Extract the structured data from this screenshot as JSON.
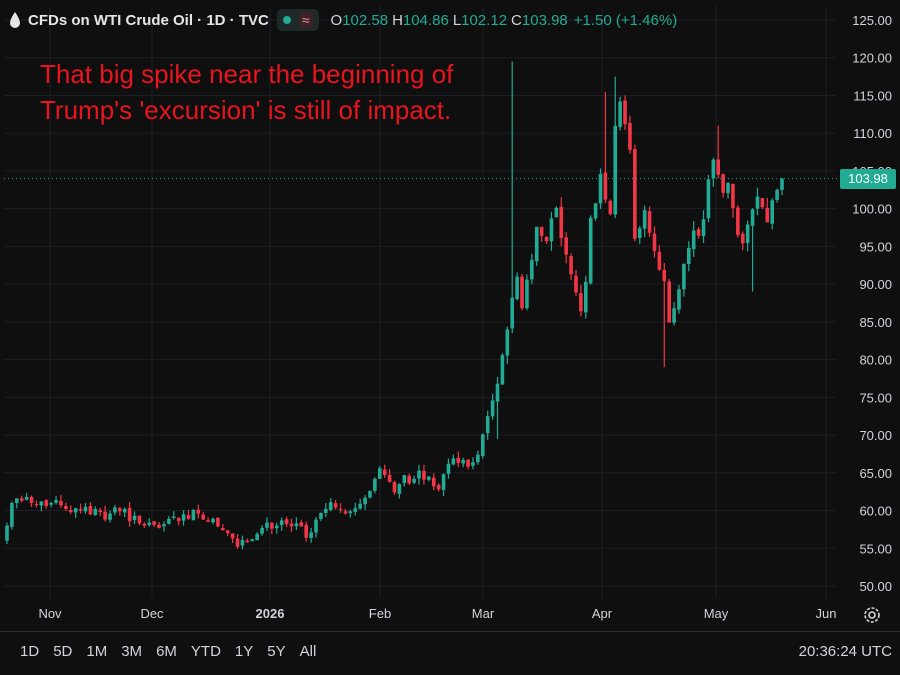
{
  "header": {
    "title": "CFDs on WTI Crude Oil · 1D · TVC",
    "wave_icon": "≈",
    "ohlc": [
      {
        "k": "O",
        "v": "102.58"
      },
      {
        "k": "H",
        "v": "104.86"
      },
      {
        "k": "L",
        "v": "102.12"
      },
      {
        "k": "C",
        "v": "103.98"
      }
    ],
    "change": "+1.50 (+1.46%)"
  },
  "annotation": "That big spike near the beginning of Trump's 'excursion' is still of impact.",
  "last_price_label": "103.98",
  "timeframes": [
    "1D",
    "5D",
    "1M",
    "3M",
    "6M",
    "YTD",
    "1Y",
    "5Y",
    "All"
  ],
  "clock": "20:36:24 UTC",
  "colors": {
    "up": "#22ab94",
    "down": "#f23645",
    "grid": "#1c1f26",
    "text": "#d1d4dc",
    "annotation": "#e8141e"
  },
  "chart_data": {
    "type": "candlestick",
    "ylim": [
      48,
      127
    ],
    "y_ticks": [
      "125.00",
      "120.00",
      "115.00",
      "110.00",
      "105.00",
      "100.00",
      "95.00",
      "90.00",
      "85.00",
      "80.00",
      "75.00",
      "70.00",
      "65.00",
      "60.00",
      "55.00",
      "50.00"
    ],
    "x_ticks": [
      "Nov",
      "Dec",
      "2026",
      "Feb",
      "Mar",
      "Apr",
      "May",
      "Jun"
    ],
    "last_price": 103.98,
    "closes": [
      58,
      61,
      61.6,
      61.3,
      61.8,
      61.0,
      60.8,
      61.2,
      60.6,
      61.0,
      61.4,
      60.7,
      60.2,
      59.8,
      60.3,
      60.0,
      60.5,
      59.5,
      60.2,
      59.8,
      58.8,
      59.6,
      60.4,
      59.9,
      60.2,
      58.6,
      59.3,
      58.3,
      58.0,
      58.4,
      58.1,
      57.7,
      58.2,
      58.9,
      59.2,
      58.6,
      59.5,
      58.9,
      60.1,
      59.6,
      58.8,
      58.5,
      58.9,
      57.9,
      57.4,
      57.0,
      56.3,
      55.2,
      56.1,
      55.8,
      56.2,
      56.9,
      57.7,
      58.4,
      57.6,
      58.0,
      58.7,
      58.2,
      57.9,
      58.3,
      57.9,
      56.4,
      57.1,
      58.8,
      59.7,
      60.2,
      61.1,
      60.4,
      60.1,
      59.6,
      59.9,
      60.3,
      60.9,
      61.7,
      62.6,
      64.2,
      65.6,
      64.7,
      63.8,
      62.4,
      63.5,
      64.7,
      63.6,
      64.2,
      65.3,
      64.1,
      64.5,
      63.2,
      62.8,
      64.8,
      66.2,
      66.9,
      66.3,
      66.7,
      65.8,
      66.4,
      67.4,
      70.1,
      72.5,
      74.6,
      76.8,
      80.6,
      84.0,
      88.2,
      91.0,
      86.8,
      90.6,
      93.2,
      97.6,
      96.4,
      95.7,
      98.7,
      100.1,
      96.1,
      93.9,
      91.3,
      88.9,
      86.4,
      90.3,
      98.8,
      100.7,
      104.6,
      101.2,
      99.3,
      111.0,
      114.2,
      111.2,
      107.8,
      96.0,
      97.4,
      99.8,
      96.8,
      94.4,
      91.9,
      90.4,
      84.9,
      86.8,
      89.3,
      92.7,
      94.8,
      97.1,
      96.4,
      98.6,
      103.9,
      106.5,
      104.5,
      102.1,
      103.4,
      100.1,
      96.5,
      95.4,
      97.9,
      99.9,
      101.6,
      100.2,
      98.2,
      101.1,
      102.5,
      103.98
    ],
    "series_note": ""
  }
}
